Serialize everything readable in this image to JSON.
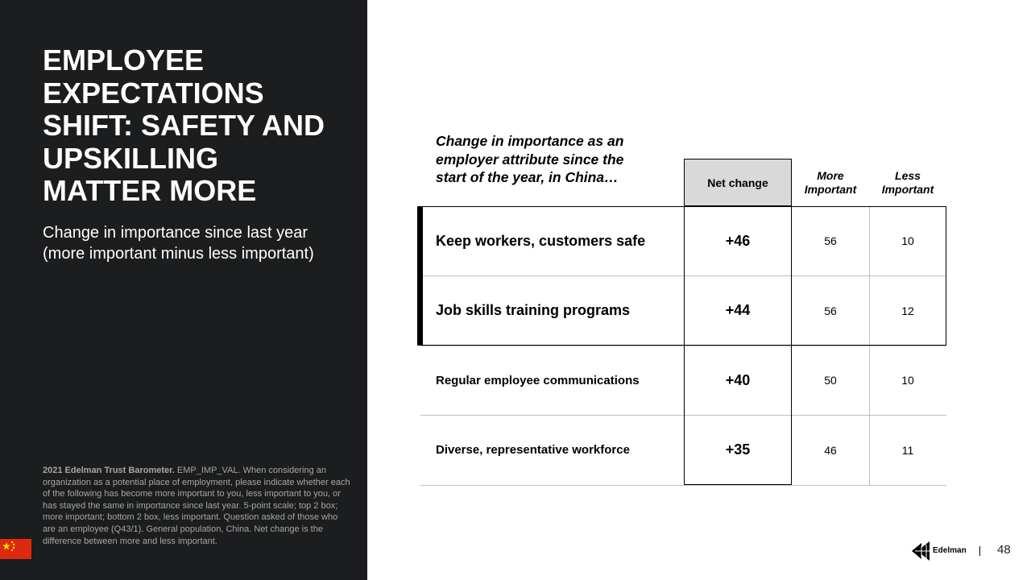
{
  "left_panel": {
    "title": "EMPLOYEE EXPECTATIONS SHIFT: SAFETY AND UPSKILLING MATTER MORE",
    "subtitle": "Change in importance since last year (more important minus less important)",
    "footnote_bold": "2021 Edelman Trust Barometer.",
    "footnote": "EMP_IMP_VAL. When considering an organization as a potential place of employment, please indicate whether each of the following has become more important to you, less important to you, or has stayed the same in importance since last year. 5-point scale; top 2 box; more important; bottom 2 box, less important. Question asked of those who are an employee (Q43/1). General population, China. Net change is the difference between more and less important."
  },
  "table": {
    "caption": "Change in importance as an employer attribute since the start of the year, in China…",
    "columns": [
      "Net change",
      "More Important",
      "Less Important"
    ],
    "rows": [
      [
        "Keep workers, customers safe",
        "+46",
        "56",
        "10"
      ],
      [
        "Job skills training programs",
        "+44",
        "56",
        "12"
      ],
      [
        "Regular employee communications",
        "+40",
        "50",
        "10"
      ],
      [
        "Diverse, representative workforce",
        "+35",
        "46",
        "11"
      ]
    ]
  },
  "footer": {
    "brand": "Edelman",
    "page": "48"
  }
}
